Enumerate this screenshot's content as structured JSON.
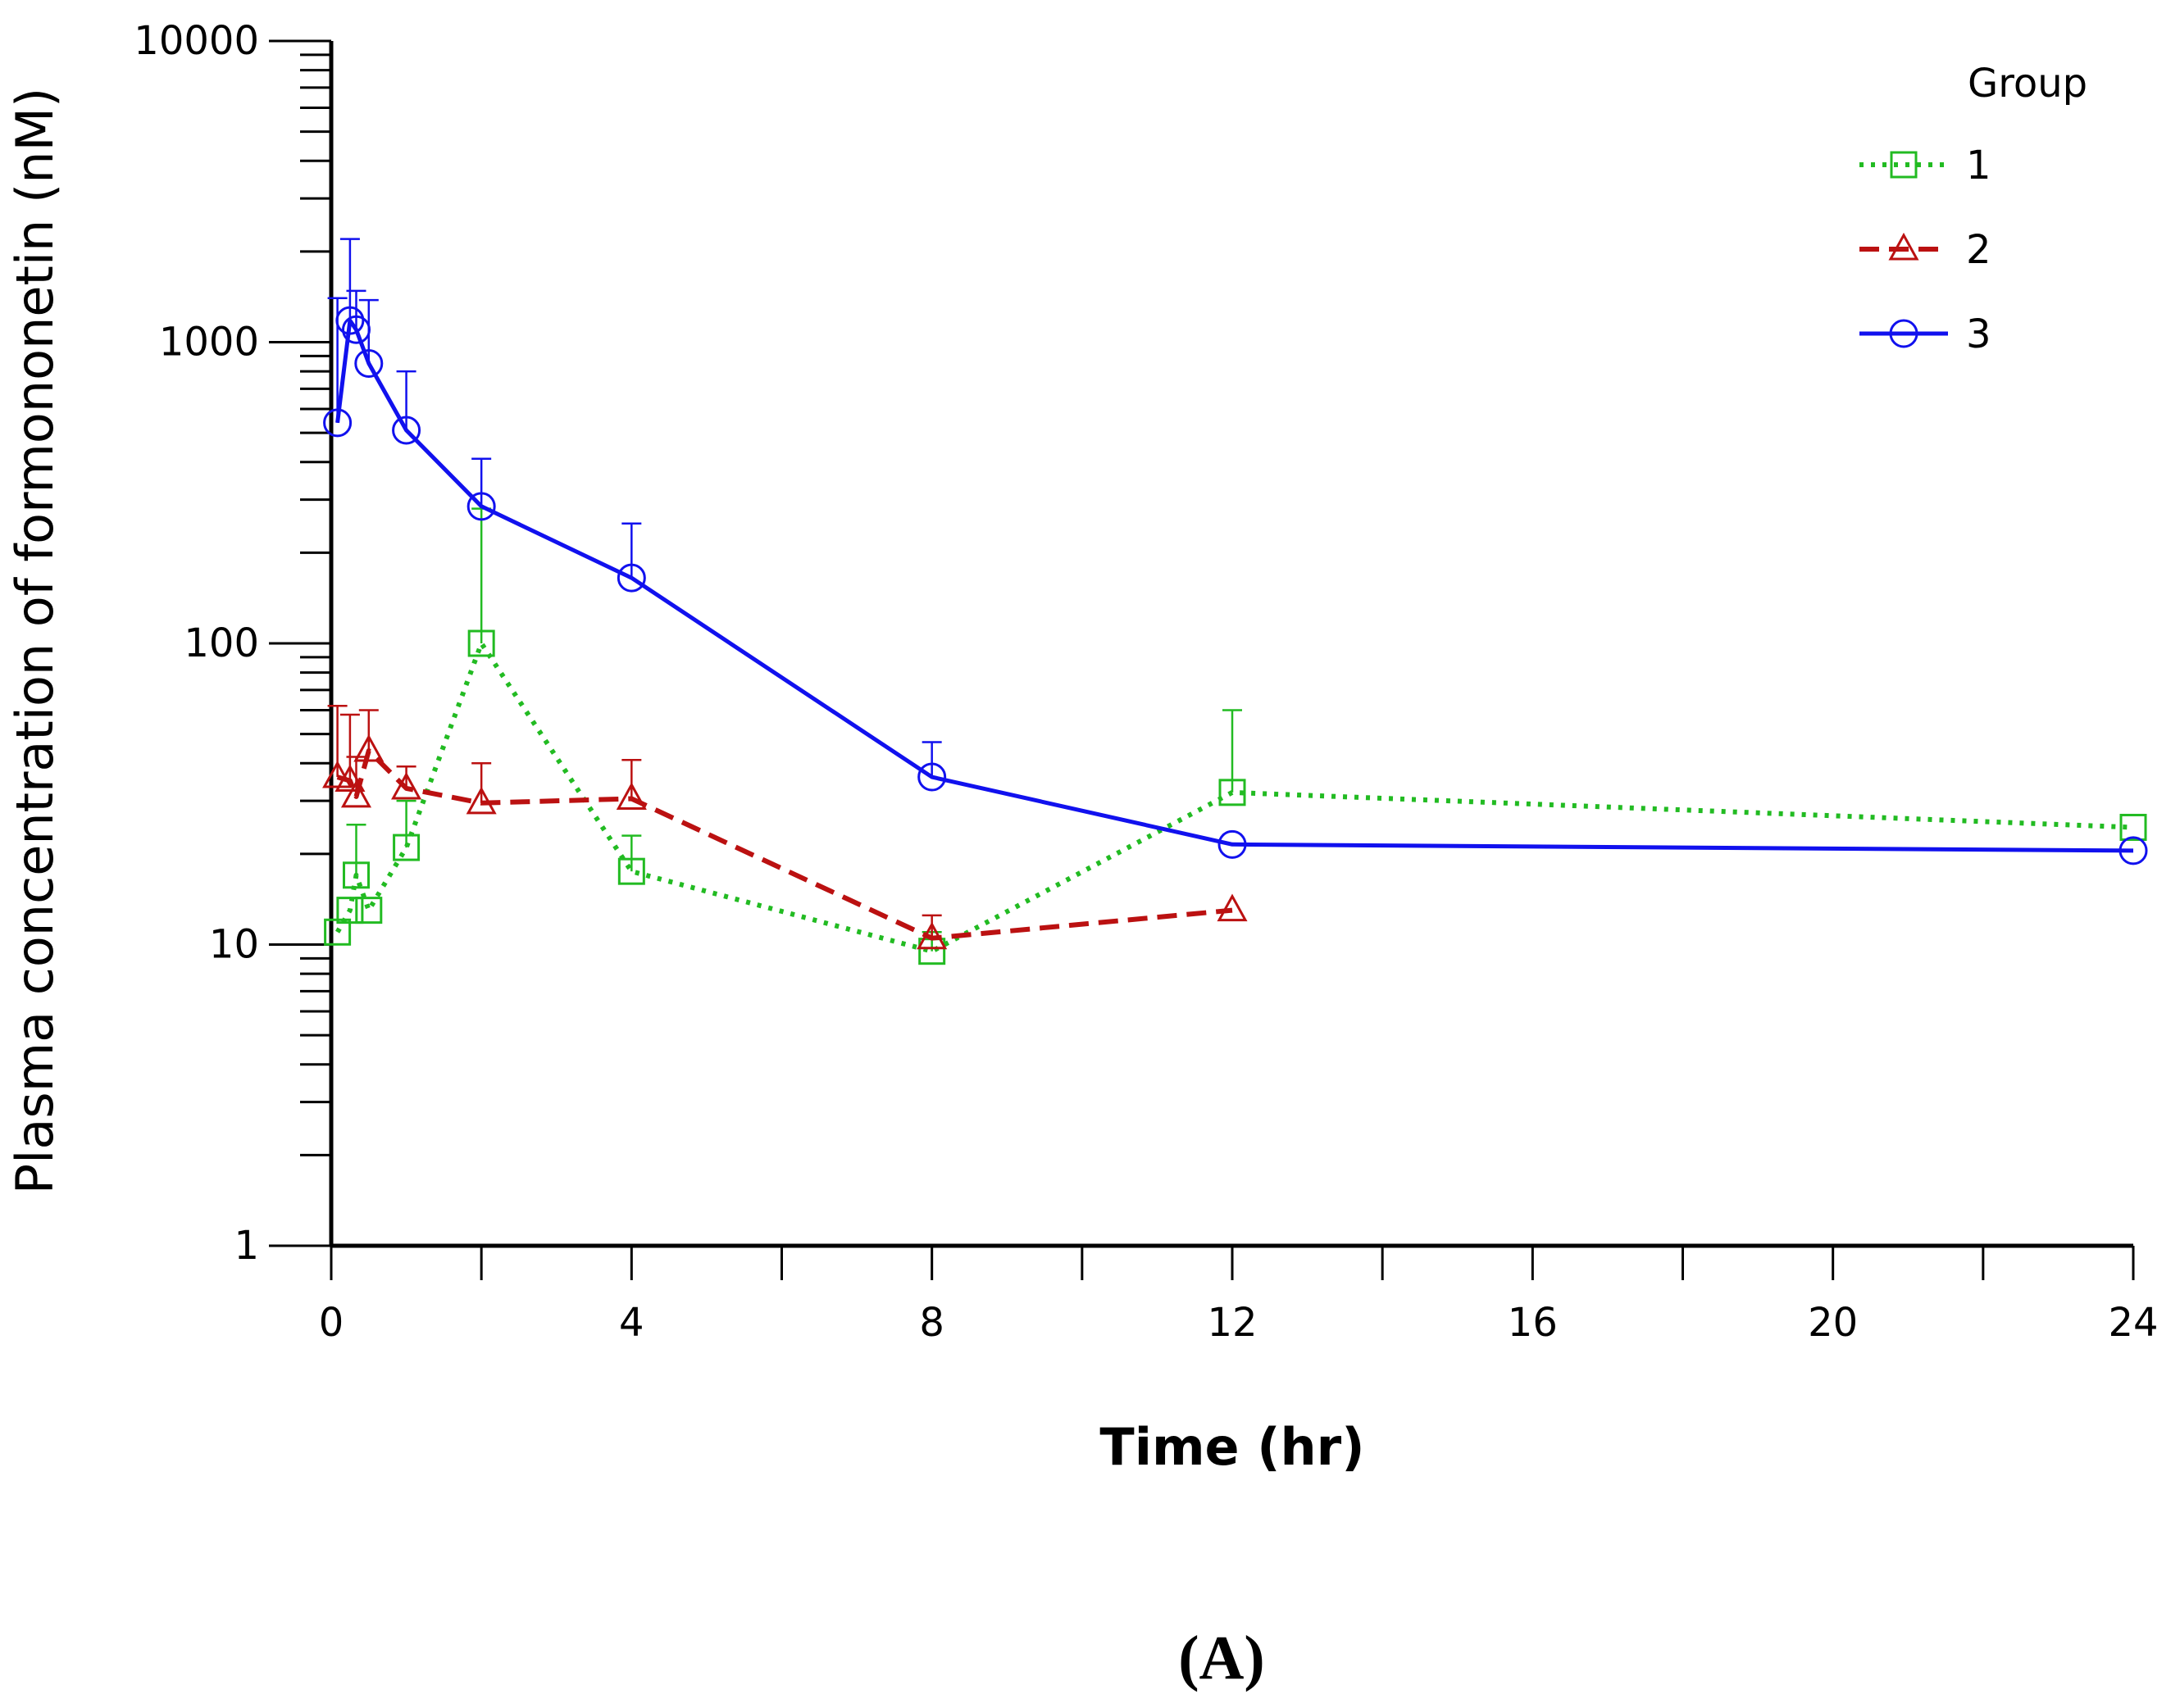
{
  "chart_data": {
    "type": "line",
    "title": "",
    "xlabel": "Time (hr)",
    "ylabel": "Plasma concentration of formononetin (nM)",
    "yscale": "log",
    "ylim": [
      1,
      10000
    ],
    "y_ticks": [
      1,
      10,
      100,
      1000,
      10000
    ],
    "y_tick_labels": [
      "1",
      "10",
      "100",
      "1000",
      "10000"
    ],
    "x_axis_breaks": [
      [
        0,
        12
      ],
      [
        12,
        24
      ]
    ],
    "x_tick_labels": [
      "0",
      "4",
      "8",
      "12",
      "16",
      "20",
      "24"
    ],
    "x_major_ticks": [
      0,
      4,
      8,
      12,
      16,
      20,
      24
    ],
    "x_minor_ticks": [
      2,
      6,
      10,
      14,
      18,
      22
    ],
    "legend": {
      "title": "Group",
      "position": "top-right"
    },
    "panel_label": "(A)",
    "series": [
      {
        "name": "1",
        "color": "#22bb22",
        "marker": "square",
        "line_style": "dotted",
        "x": [
          0.083,
          0.25,
          0.333,
          0.5,
          1,
          2,
          4,
          8,
          12,
          24
        ],
        "y": [
          11,
          13,
          17,
          13,
          21,
          100,
          17.5,
          9.5,
          32,
          24.5
        ],
        "err": [
          0,
          5,
          25,
          5,
          30,
          280,
          23,
          11,
          60,
          0
        ]
      },
      {
        "name": "2",
        "color": "#bb1111",
        "marker": "triangle",
        "line_style": "dashed",
        "x": [
          0.083,
          0.25,
          0.333,
          0.5,
          1,
          2,
          4,
          8,
          12
        ],
        "y": [
          36,
          35,
          31,
          44,
          33,
          29.5,
          30.5,
          10.5,
          13
        ],
        "err": [
          62,
          58,
          42,
          60,
          39,
          40,
          41,
          12.5,
          0
        ]
      },
      {
        "name": "3",
        "color": "#1111ee",
        "marker": "circle",
        "line_style": "solid",
        "x": [
          0.083,
          0.25,
          0.333,
          0.5,
          1,
          2,
          4,
          8,
          12,
          24
        ],
        "y": [
          540,
          1180,
          1100,
          850,
          510,
          285,
          165,
          36,
          21.5,
          20.5
        ],
        "err": [
          1400,
          2200,
          1480,
          1380,
          800,
          410,
          250,
          47,
          0,
          0
        ]
      }
    ]
  }
}
